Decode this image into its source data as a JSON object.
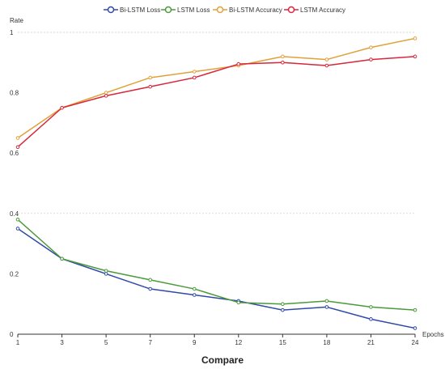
{
  "chart_data": {
    "type": "line",
    "title": "Compare",
    "xlabel": "Epochs",
    "ylabel": "Rate",
    "x": [
      "1",
      "3",
      "5",
      "7",
      "9",
      "12",
      "15",
      "18",
      "21",
      "24"
    ],
    "ylim": [
      0,
      1
    ],
    "yticks": [
      "0",
      "0.2",
      "0.4",
      "0.6",
      "0.8",
      "1"
    ],
    "grid": "horizontal dashed at 0.4 and 1",
    "legend_position": "top-center",
    "series": [
      {
        "name": "Bi-LSTM Loss",
        "color": "#2f4aa8",
        "values": [
          0.35,
          0.25,
          0.2,
          0.15,
          0.13,
          0.11,
          0.08,
          0.09,
          0.05,
          0.02
        ]
      },
      {
        "name": "LSTM Loss",
        "color": "#4c9a3a",
        "values": [
          0.38,
          0.25,
          0.21,
          0.18,
          0.15,
          0.105,
          0.1,
          0.11,
          0.09,
          0.08
        ]
      },
      {
        "name": "Bi-LSTM Accuracy",
        "color": "#e0a13a",
        "values": [
          0.65,
          0.75,
          0.8,
          0.85,
          0.87,
          0.89,
          0.92,
          0.91,
          0.95,
          0.98
        ]
      },
      {
        "name": "LSTM Accuracy",
        "color": "#d8263a",
        "values": [
          0.62,
          0.75,
          0.79,
          0.82,
          0.85,
          0.895,
          0.9,
          0.89,
          0.91,
          0.92
        ]
      }
    ]
  }
}
